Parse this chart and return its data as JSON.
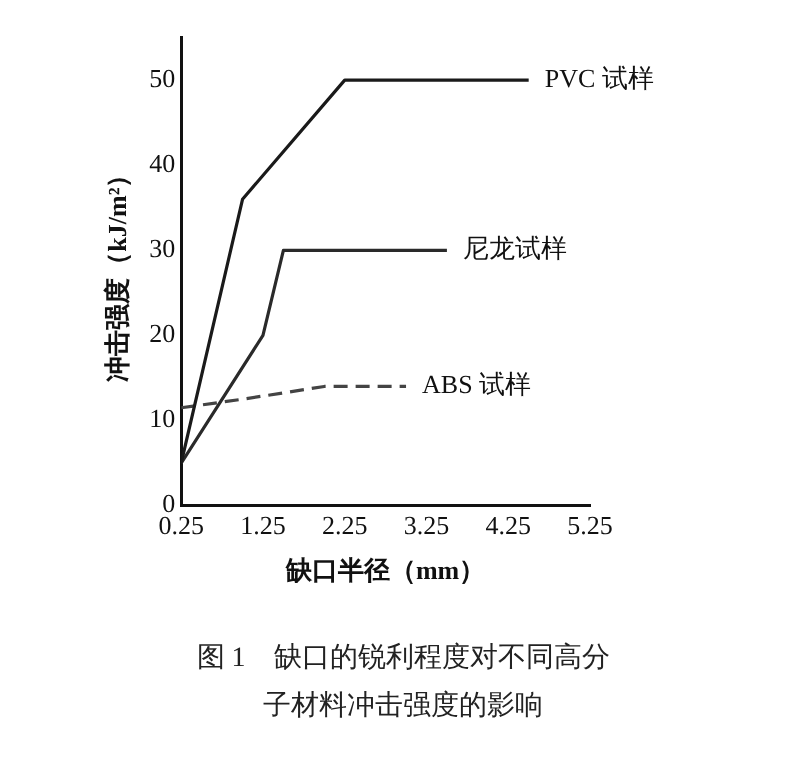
{
  "chart_data": {
    "type": "line",
    "title": "图 1　缺口的锐利程度对不同高分子材料冲击强度的影响",
    "xlabel": "缺口半径（mm）",
    "ylabel": "冲击强度（kJ/m²）",
    "series": [
      {
        "name": "PVC 试样",
        "color": "#1a1a1a",
        "line_style": "solid",
        "x": [
          0.25,
          1.0,
          2.25,
          4.5
        ],
        "values": [
          5,
          36,
          50,
          50
        ]
      },
      {
        "name": "尼龙试样",
        "color": "#2a2a2a",
        "line_style": "solid",
        "x": [
          0.25,
          1.25,
          1.5,
          3.5
        ],
        "values": [
          5,
          20,
          30,
          30
        ]
      },
      {
        "name": "ABS 试样",
        "color": "#444444",
        "line_style": "dashed",
        "x": [
          0.25,
          1.0,
          2.0,
          3.0
        ],
        "values": [
          11.5,
          12.5,
          14,
          14
        ]
      }
    ],
    "xlim": [
      0.25,
      5.25
    ],
    "xticks": [
      0.25,
      1.25,
      2.25,
      3.25,
      4.25,
      5.25
    ],
    "ylim": [
      0,
      55
    ],
    "yticks": [
      0,
      10,
      20,
      30,
      40,
      50
    ],
    "grid": false,
    "legend": false,
    "marker": "none"
  }
}
